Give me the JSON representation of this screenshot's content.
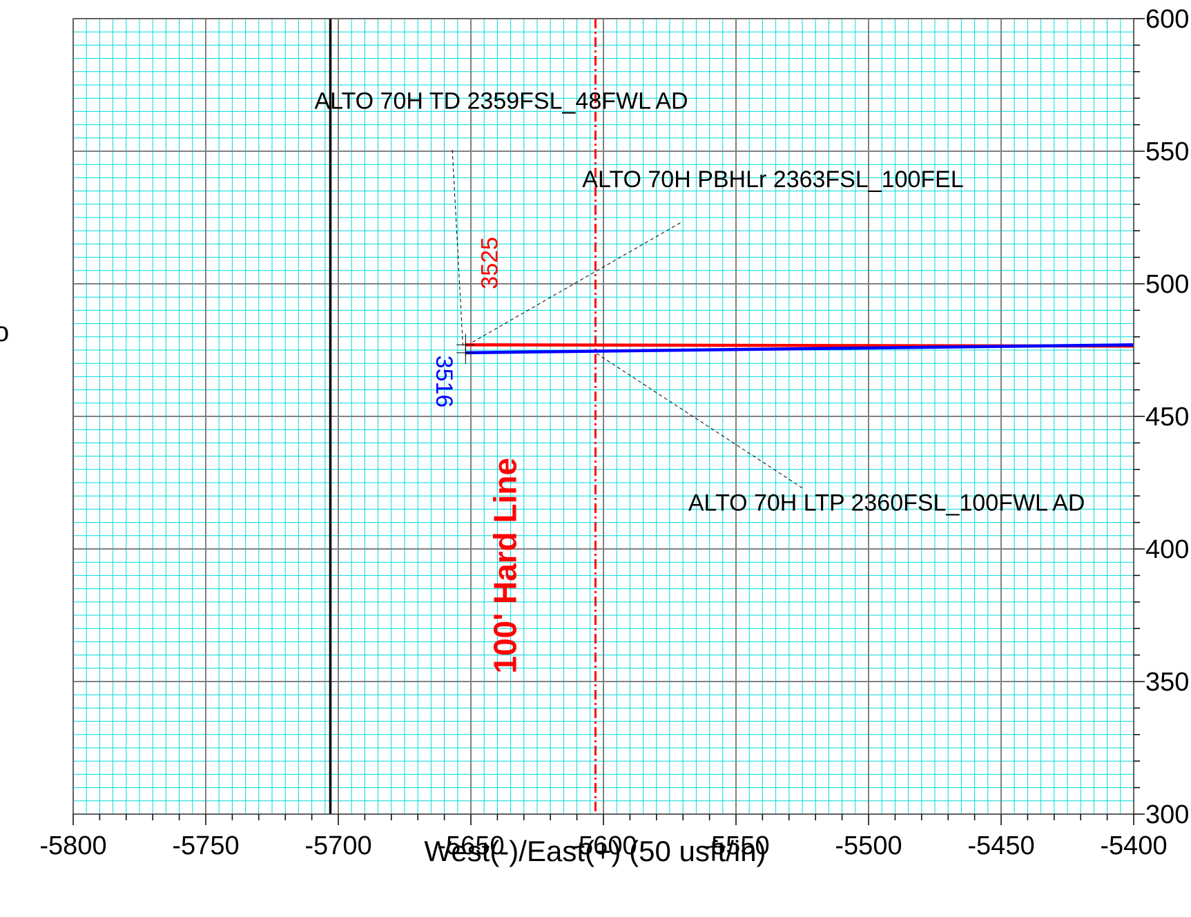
{
  "chart_data": {
    "type": "line",
    "title": "",
    "xlabel": "West(-)/East(+) (50 usft/in)",
    "ylabel": "",
    "xlim": [
      -5800,
      -5400
    ],
    "ylim": [
      3000,
      6000
    ],
    "x_ticks": [
      -5800,
      -5750,
      -5700,
      -5650,
      -5600,
      -5550,
      -5500,
      -5450,
      -5400
    ],
    "x_tick_labels": [
      "-5800",
      "-5750",
      "-5700",
      "-5650",
      "-5600",
      "-5550",
      "-5500",
      "-5450",
      "-5400"
    ],
    "y_ticks": [
      3000,
      3500,
      4000,
      4500,
      5000,
      5500,
      6000
    ],
    "y_tick_labels": [
      "300",
      "350",
      "400",
      "450",
      "500",
      "550",
      "600"
    ],
    "y_axis_side": "right",
    "grid": true,
    "grid_minor_step": 5,
    "grid_major_step": 50,
    "left_edge_partial_label": "o",
    "series": [
      {
        "color": "#ff0000",
        "x": [
          -5652,
          -5400
        ],
        "y": [
          4770,
          4765
        ]
      },
      {
        "color": "#0000ff",
        "x": [
          -5652,
          -5400
        ],
        "y": [
          4740,
          4770
        ]
      }
    ],
    "vertical_lines": [
      {
        "x": -5703,
        "color": "#000000",
        "style": "solid"
      },
      {
        "x": -5603,
        "color": "#ff0000",
        "style": "dashdot"
      }
    ],
    "annotations": [
      {
        "text": "ALTO 70H TD 2359FSL_48FWL AD",
        "x": -5709,
        "y": 5660,
        "color": "#000000",
        "leader": [
          [
            -5657,
            5505
          ],
          [
            -5653,
            4765
          ]
        ]
      },
      {
        "text": "ALTO 70H PBHLr 2363FSL_100FEL",
        "x": -5608,
        "y": 5365,
        "color": "#000000",
        "leader": [
          [
            -5571,
            5230
          ],
          [
            -5652,
            4765
          ]
        ]
      },
      {
        "text": "ALTO 70H LTP 2360FSL_100FWL AD",
        "x": -5568,
        "y": 4145,
        "color": "#000000",
        "leader": [
          [
            -5525,
            4230
          ],
          [
            -5603,
            4740
          ]
        ]
      },
      {
        "text": "3525",
        "x": -5640,
        "y": 4980,
        "color": "#ff0000",
        "rotate": -90
      },
      {
        "text": "3516",
        "x": -5663,
        "y": 4730,
        "color": "#0000ff",
        "rotate": 90
      },
      {
        "text": "100' Hard Line",
        "x": -5633,
        "y": 3530,
        "color": "#ff0000",
        "rotate": -90,
        "bold": true
      }
    ],
    "colors": {
      "minor_grid": "#00d8d8",
      "major_grid": "#808080",
      "axis": "#000000"
    }
  }
}
